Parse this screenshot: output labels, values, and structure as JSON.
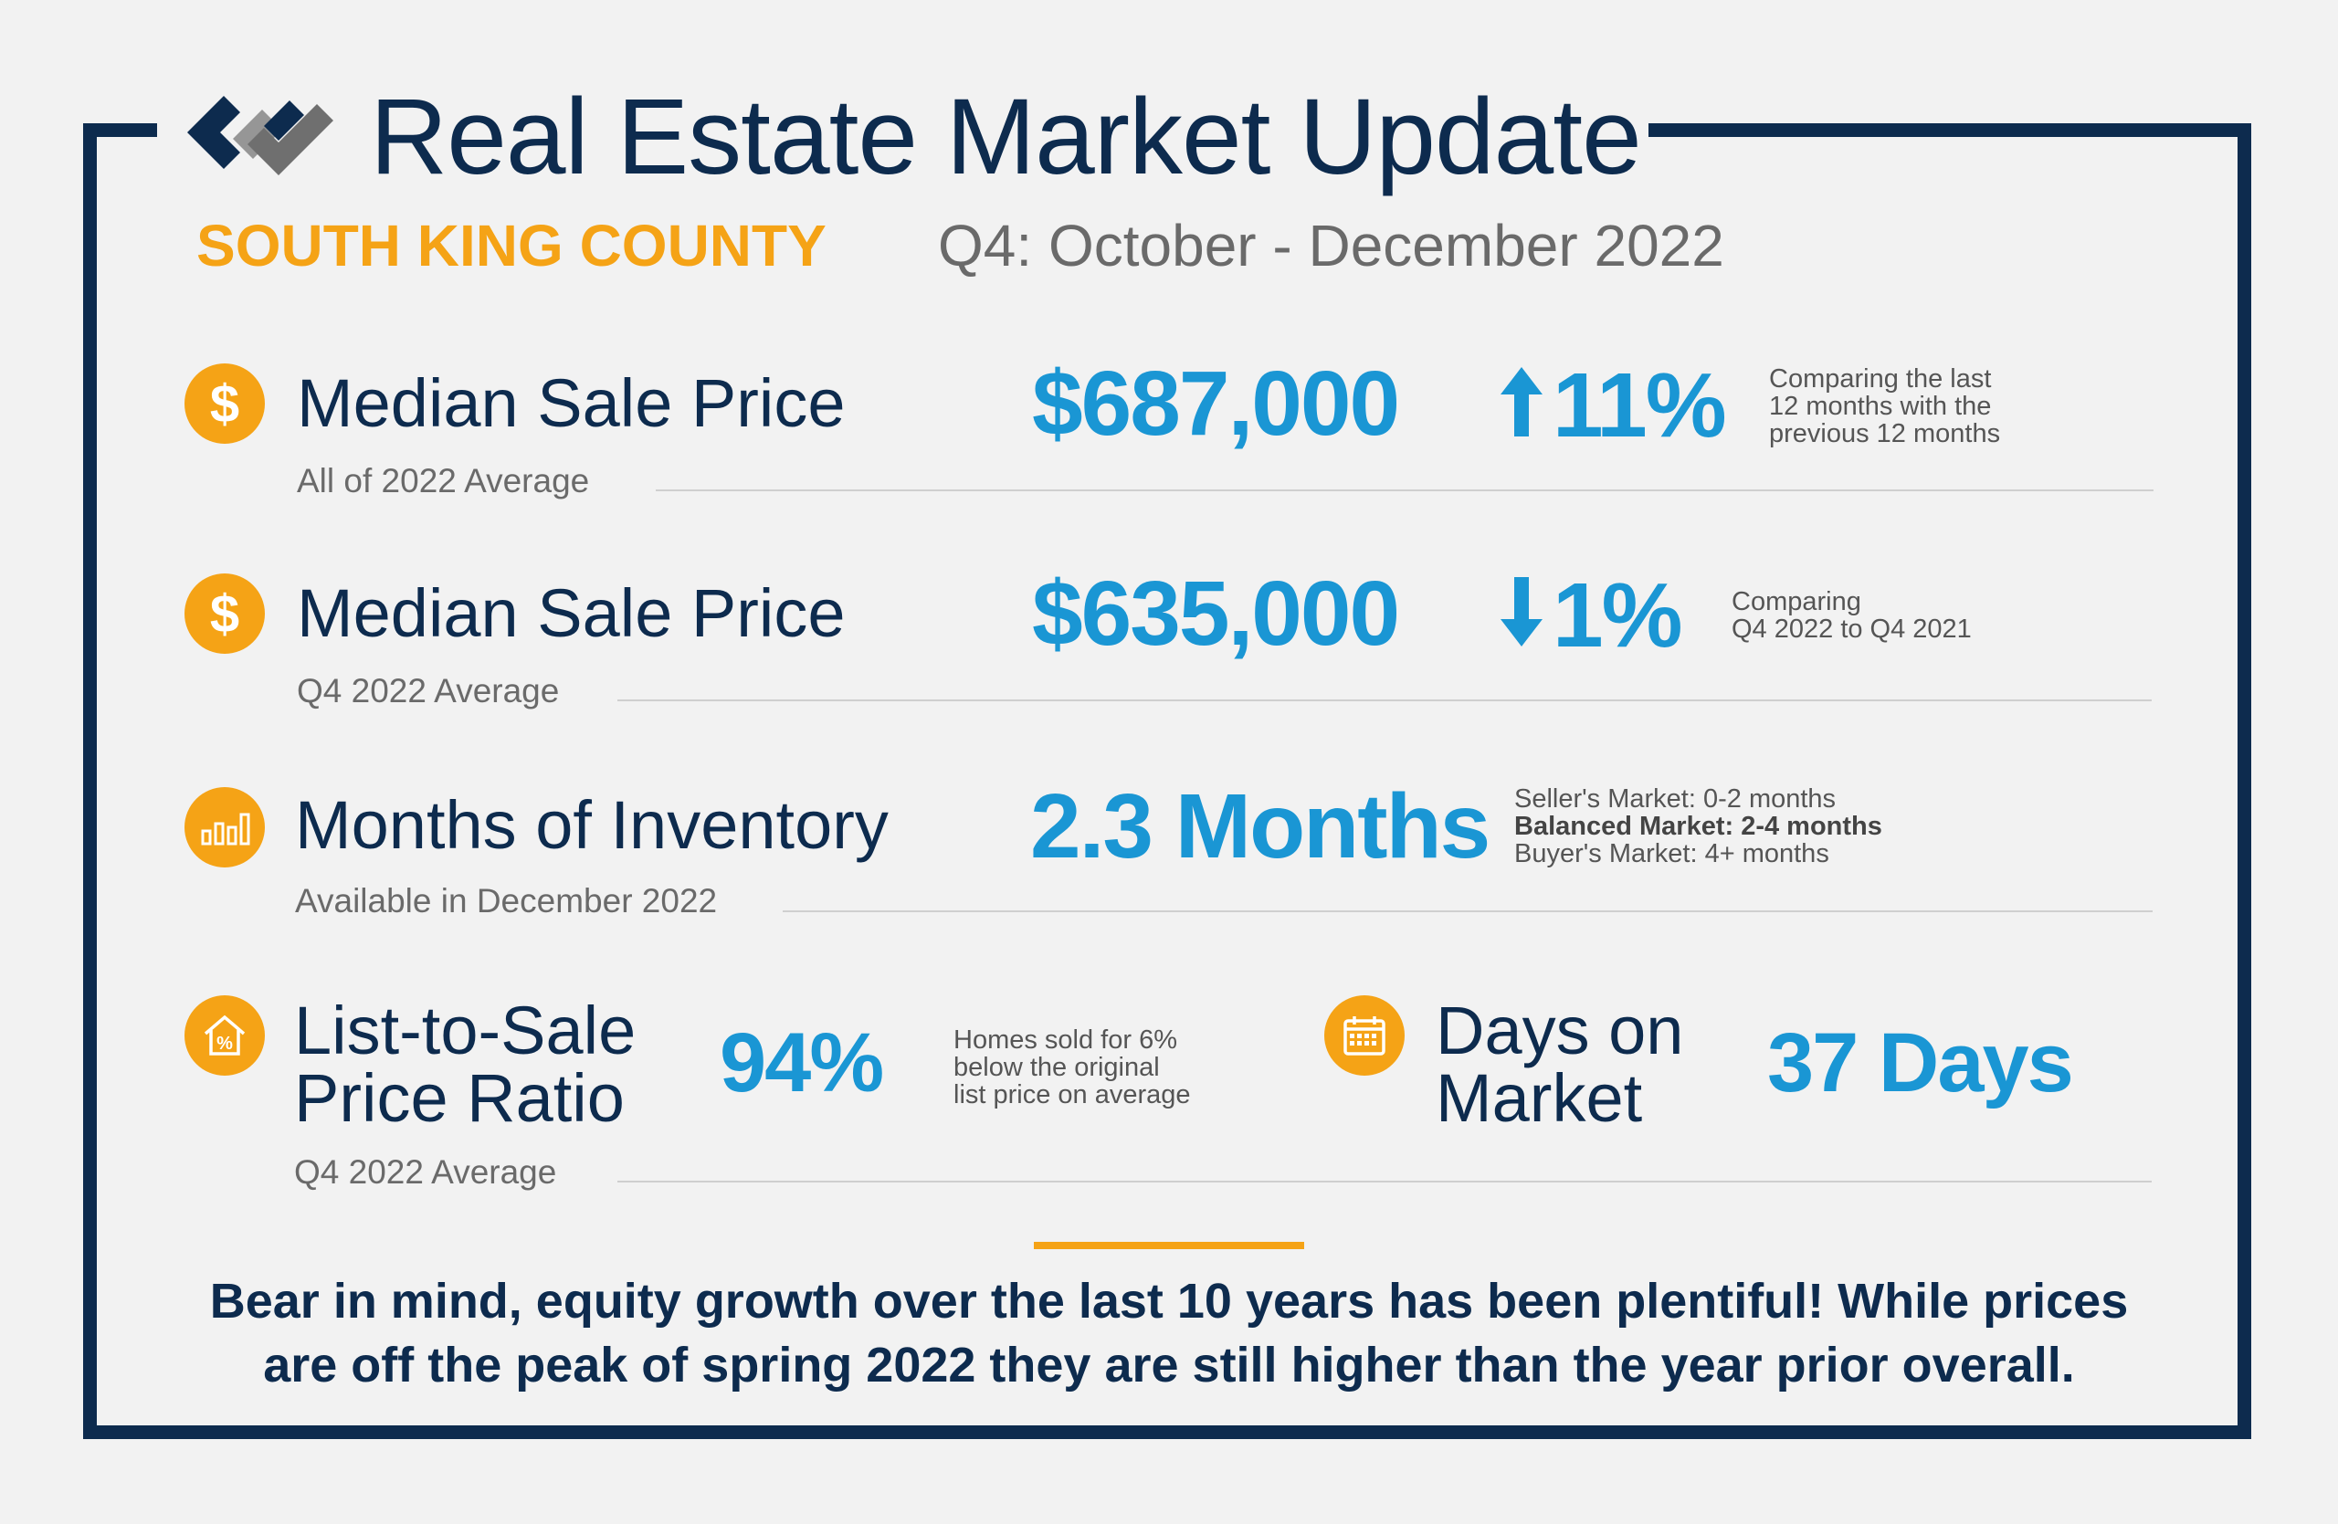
{
  "header": {
    "title": "Real Estate Market Update",
    "region": "SOUTH KING COUNTY",
    "period": "Q4: October - December 2022"
  },
  "colors": {
    "navy": "#0d2b4e",
    "orange": "#f5a316",
    "blue": "#1a96d4",
    "gray": "#6a6a6a"
  },
  "metrics": [
    {
      "icon": "dollar-icon",
      "label": "Median Sale Price",
      "sublabel": "All of 2022 Average",
      "value": "$687,000",
      "direction": "up",
      "change": "11%",
      "note": [
        "Comparing the last",
        "12 months with the",
        "previous 12 months"
      ]
    },
    {
      "icon": "dollar-icon",
      "label": "Median Sale Price",
      "sublabel": "Q4 2022 Average",
      "value": "$635,000",
      "direction": "down",
      "change": "1%",
      "note": [
        "Comparing",
        "Q4 2022 to Q4 2021"
      ]
    },
    {
      "icon": "bar-chart-icon",
      "label": "Months of Inventory",
      "sublabel": "Available in December 2022",
      "value": "2.3 Months",
      "note": [
        "Seller's Market: 0-2 months",
        "Balanced Market: 2-4 months",
        "Buyer's Market: 4+ months"
      ]
    },
    {
      "icon": "house-percent-icon",
      "label_lines": [
        "List-to-Sale",
        "Price Ratio"
      ],
      "sublabel": "Q4 2022 Average",
      "value": "94%",
      "note": [
        "Homes sold for 6%",
        "below the original",
        "list price on average"
      ]
    },
    {
      "icon": "calendar-icon",
      "label_lines": [
        "Days on",
        "Market"
      ],
      "value": "37 Days"
    }
  ],
  "footer": {
    "line1": "Bear in mind, equity growth over the last 10 years has been plentiful! While prices",
    "line2": "are off the peak of spring 2022 they are still higher than the year prior overall."
  }
}
